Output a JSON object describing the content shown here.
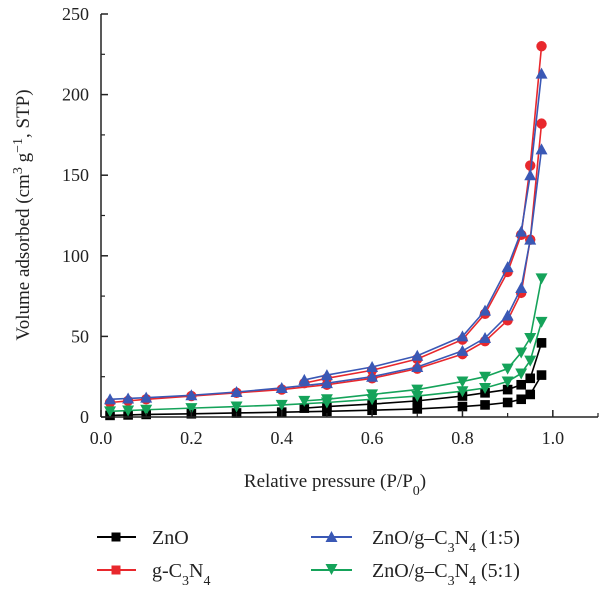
{
  "chart_data": {
    "type": "line",
    "xlabel": "Relative pressure (P/P",
    "xlabel_sub": "0",
    "xlabel_end": ")",
    "ylabel": "Volume adsorbed (cm",
    "ylabel_sup1": "3",
    "ylabel_mid": " g",
    "ylabel_sup2": "−1",
    "ylabel_end": ", STP)",
    "xlim": [
      0.0,
      1.1
    ],
    "ylim": [
      0,
      250
    ],
    "x_ticks": [
      0.0,
      0.2,
      0.4,
      0.6,
      0.8,
      1.0
    ],
    "x_tick_labels": [
      "0.0",
      "0.2",
      "0.4",
      "0.6",
      "0.8",
      "1.0"
    ],
    "y_ticks": [
      0,
      50,
      100,
      150,
      200,
      250
    ],
    "y_tick_labels": [
      "0",
      "50",
      "100",
      "150",
      "200",
      "250"
    ],
    "grid": false,
    "legend_position": "bottom",
    "series": [
      {
        "name": "ZnO",
        "color": "#000000",
        "marker": "square",
        "adsorption": {
          "x": [
            0.02,
            0.06,
            0.1,
            0.2,
            0.3,
            0.4,
            0.5,
            0.6,
            0.7,
            0.8,
            0.85,
            0.9,
            0.93,
            0.95,
            0.975
          ],
          "y": [
            1,
            1.3,
            1.6,
            2,
            2.5,
            3,
            3.5,
            4.2,
            5,
            6.5,
            7.5,
            9,
            11,
            14,
            26
          ]
        },
        "desorption": {
          "x": [
            0.975,
            0.95,
            0.93,
            0.9,
            0.85,
            0.8,
            0.7,
            0.6,
            0.5,
            0.45
          ],
          "y": [
            46,
            24,
            20,
            17,
            15,
            13,
            10,
            8,
            6.5,
            5.5
          ]
        }
      },
      {
        "name": "g-C",
        "name_sub1": "3",
        "name_mid": "N",
        "name_sub2": "4",
        "color": "#e8282d",
        "marker": "circle",
        "adsorption": {
          "x": [
            0.02,
            0.06,
            0.1,
            0.2,
            0.3,
            0.4,
            0.5,
            0.6,
            0.7,
            0.8,
            0.85,
            0.9,
            0.93,
            0.95,
            0.975
          ],
          "y": [
            9,
            10,
            11,
            13,
            15,
            17,
            20,
            24,
            30,
            39,
            47,
            60,
            77,
            110,
            182
          ]
        },
        "desorption": {
          "x": [
            0.975,
            0.95,
            0.93,
            0.9,
            0.85,
            0.8,
            0.7,
            0.6,
            0.5,
            0.45
          ],
          "y": [
            230,
            156,
            113,
            90,
            64,
            48,
            36,
            29,
            24,
            21
          ]
        }
      },
      {
        "name": "ZnO/g–C",
        "name_sub1": "3",
        "name_mid": "N",
        "name_sub2": "4",
        "name_end": " (1:5)",
        "color": "#3a58b5",
        "marker": "triangle-up",
        "adsorption": {
          "x": [
            0.02,
            0.06,
            0.1,
            0.2,
            0.3,
            0.4,
            0.5,
            0.6,
            0.7,
            0.8,
            0.85,
            0.9,
            0.93,
            0.95,
            0.975
          ],
          "y": [
            11,
            11.5,
            12,
            13.5,
            15.5,
            18,
            21,
            25,
            31,
            41,
            49,
            63,
            80,
            110,
            166
          ]
        },
        "desorption": {
          "x": [
            0.975,
            0.95,
            0.93,
            0.9,
            0.85,
            0.8,
            0.7,
            0.6,
            0.5,
            0.45
          ],
          "y": [
            213,
            150,
            115,
            93,
            66,
            50,
            38,
            31,
            26,
            23
          ]
        }
      },
      {
        "name": "ZnO/g–C",
        "name_sub1": "3",
        "name_mid": "N",
        "name_sub2": "4",
        "name_end": " (5:1)",
        "color": "#15a35a",
        "marker": "triangle-down",
        "adsorption": {
          "x": [
            0.02,
            0.06,
            0.1,
            0.2,
            0.3,
            0.4,
            0.5,
            0.6,
            0.7,
            0.8,
            0.85,
            0.9,
            0.93,
            0.95,
            0.975
          ],
          "y": [
            3.5,
            4,
            4.5,
            5.5,
            6.5,
            7.5,
            9,
            11,
            13,
            16,
            18,
            22,
            27,
            35,
            59
          ]
        },
        "desorption": {
          "x": [
            0.975,
            0.95,
            0.93,
            0.9,
            0.85,
            0.8,
            0.7,
            0.6,
            0.5,
            0.45
          ],
          "y": [
            86,
            49,
            40,
            30,
            25,
            22,
            17,
            14,
            11,
            10
          ]
        }
      }
    ]
  }
}
